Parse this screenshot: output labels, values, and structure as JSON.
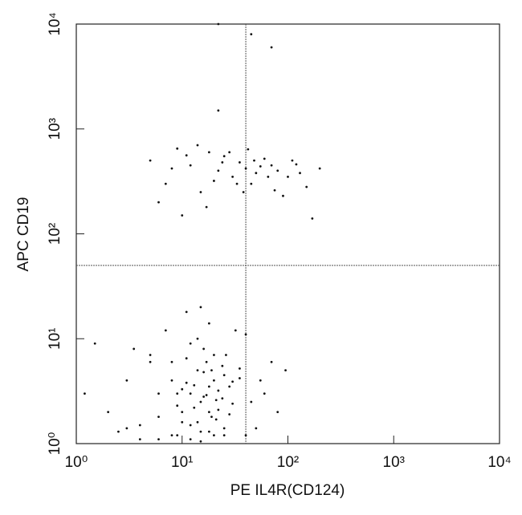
{
  "chart_data": {
    "type": "scatter",
    "x_label": "PE IL4R(CD124)",
    "y_label": "APC CD19",
    "xscale": "log",
    "yscale": "log",
    "xlim": [
      1,
      10000
    ],
    "ylim": [
      1,
      10000
    ],
    "xticks": [
      {
        "value": 1,
        "label": "10⁰"
      },
      {
        "value": 10,
        "label": "10¹"
      },
      {
        "value": 100,
        "label": "10²"
      },
      {
        "value": 1000,
        "label": "10³"
      },
      {
        "value": 10000,
        "label": "10⁴"
      }
    ],
    "yticks": [
      {
        "value": 1,
        "label": "10⁰"
      },
      {
        "value": 10,
        "label": "10¹"
      },
      {
        "value": 100,
        "label": "10²"
      },
      {
        "value": 1000,
        "label": "10³"
      },
      {
        "value": 10000,
        "label": "10⁴"
      }
    ],
    "quadrant_lines": {
      "x": 40,
      "y": 50
    },
    "series": [
      {
        "color": "#111111",
        "x": [
          5,
          7,
          9,
          12,
          15,
          18,
          22,
          25,
          30,
          35,
          40,
          45,
          50,
          60,
          70,
          80,
          100,
          120,
          150,
          200,
          6,
          10,
          14,
          20,
          28,
          38,
          48,
          65,
          90,
          130,
          8,
          11,
          17,
          24,
          33,
          42,
          55,
          75,
          110,
          170,
          12,
          15,
          18,
          20,
          10,
          14,
          16,
          22,
          25,
          11,
          13,
          17,
          19,
          21,
          9,
          8,
          24,
          28,
          30,
          35,
          12,
          15,
          18,
          20,
          10,
          14,
          16,
          22,
          25,
          11,
          13,
          17,
          19,
          21,
          9,
          8,
          24,
          28,
          30,
          35,
          2,
          3,
          4,
          5,
          6,
          1.5,
          2.5,
          3.5,
          45,
          55,
          60,
          70,
          80,
          95,
          40,
          50,
          7,
          6,
          5,
          1.2,
          14,
          16,
          18,
          12,
          20,
          10,
          26,
          32,
          11,
          15,
          4,
          8,
          12,
          18,
          25,
          40,
          3,
          6,
          9,
          15,
          22,
          45,
          70,
          22
        ],
        "y": [
          500,
          300,
          650,
          450,
          250,
          600,
          400,
          550,
          350,
          480,
          420,
          300,
          380,
          520,
          450,
          400,
          350,
          460,
          280,
          420,
          200,
          150,
          700,
          320,
          600,
          250,
          500,
          350,
          230,
          380,
          420,
          560,
          180,
          480,
          300,
          640,
          440,
          260,
          500,
          140,
          3,
          2.5,
          3.5,
          4,
          2,
          5,
          2.8,
          3.2,
          4.5,
          3.8,
          2.2,
          6,
          1.8,
          2.6,
          3,
          4,
          5.5,
          3.5,
          2.4,
          4.2,
          1.5,
          1.3,
          2,
          7,
          3.3,
          1.6,
          4.8,
          2.1,
          1.4,
          6.5,
          3.6,
          2.9,
          5,
          1.7,
          2.3,
          6,
          2.7,
          1.9,
          3.9,
          5.2,
          2,
          4,
          1.5,
          6,
          3,
          9,
          1.3,
          8,
          2.5,
          4,
          3,
          6,
          2,
          5,
          11,
          1.4,
          12,
          1.8,
          7,
          3,
          10,
          8,
          14,
          9,
          1.2,
          1.6,
          7,
          12,
          18,
          20,
          1.1,
          1.2,
          1.1,
          1.3,
          1.2,
          1.2,
          1.4,
          1.1,
          1.2,
          1.05,
          10000,
          8000,
          6000,
          1500
        ]
      }
    ]
  }
}
